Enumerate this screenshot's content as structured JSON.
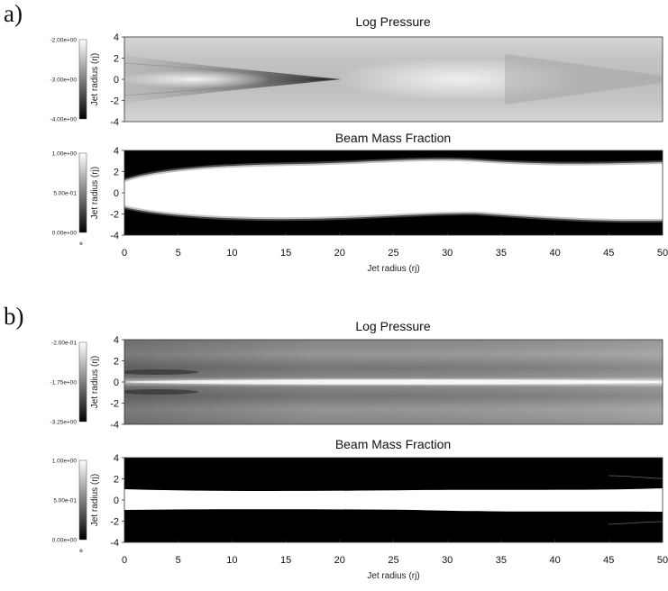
{
  "panels": [
    {
      "label": "a)",
      "plots": [
        {
          "title": "Log Pressure",
          "colorbar": {
            "ticks": [
              "-2.00e+00",
              "-3.00e+00",
              "-4.00e+00"
            ],
            "label": "Jet radius (rj)"
          },
          "y_ticks": [
            "4",
            "2",
            "0",
            "-2",
            "-4"
          ]
        },
        {
          "title": "Beam Mass Fraction",
          "colorbar": {
            "ticks": [
              "1.00e+00",
              "5.00e-01",
              "0.00e+00"
            ],
            "label": "Jet radius (rj)",
            "extra": "e"
          },
          "y_ticks": [
            "4",
            "2",
            "0",
            "-2",
            "-4"
          ]
        }
      ],
      "x_ticks": [
        "0",
        "5",
        "10",
        "15",
        "20",
        "25",
        "30",
        "35",
        "40",
        "45",
        "50"
      ],
      "xlabel": "Jet radius (rj)"
    },
    {
      "label": "b)",
      "plots": [
        {
          "title": "Log Pressure",
          "colorbar": {
            "ticks": [
              "-2.00e-01",
              "-1.75e+00",
              "-3.25e+00"
            ],
            "label": "Jet radius (rj)"
          },
          "y_ticks": [
            "4",
            "2",
            "0",
            "-2",
            "-4"
          ]
        },
        {
          "title": "Beam Mass Fraction",
          "colorbar": {
            "ticks": [
              "1.00e+00",
              "5.00e-01",
              "0.00e+00"
            ],
            "label": "Jet radius (rj)",
            "extra": "e"
          },
          "y_ticks": [
            "4",
            "2",
            "0",
            "-2",
            "-4"
          ]
        }
      ],
      "x_ticks": [
        "0",
        "5",
        "10",
        "15",
        "20",
        "25",
        "30",
        "35",
        "40",
        "45",
        "50"
      ],
      "xlabel": "Jet radius (rj)"
    }
  ],
  "chart_data": [
    {
      "type": "heatmap",
      "title": "Log Pressure",
      "panel": "a)",
      "xlim": [
        0,
        50
      ],
      "ylim": [
        -4,
        4
      ],
      "colormap": "grayscale",
      "clim": [
        -4.0,
        -2.0
      ]
    },
    {
      "type": "heatmap",
      "title": "Beam Mass Fraction",
      "panel": "a)",
      "xlim": [
        0,
        50
      ],
      "ylim": [
        -4,
        4
      ],
      "colormap": "grayscale",
      "clim": [
        0.0,
        1.0
      ]
    },
    {
      "type": "heatmap",
      "title": "Log Pressure",
      "panel": "b)",
      "xlim": [
        0,
        50
      ],
      "ylim": [
        -4,
        4
      ],
      "colormap": "grayscale",
      "clim": [
        -3.25,
        -0.2
      ]
    },
    {
      "type": "heatmap",
      "title": "Beam Mass Fraction",
      "panel": "b)",
      "xlim": [
        0,
        50
      ],
      "ylim": [
        -4,
        4
      ],
      "colormap": "grayscale",
      "clim": [
        0.0,
        1.0
      ]
    }
  ]
}
